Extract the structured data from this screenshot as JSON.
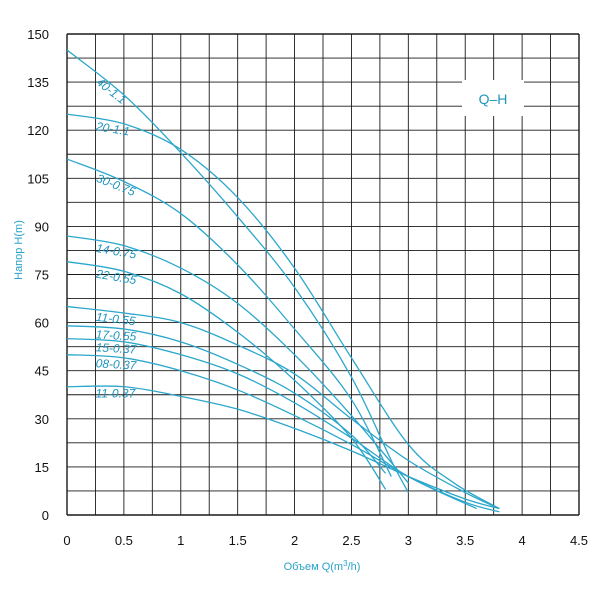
{
  "chart_data": {
    "type": "line",
    "title": "Q–H",
    "xlabel": "Объем Q(m³/h)",
    "ylabel": "Напор H(m)",
    "xlim": [
      0,
      4.5
    ],
    "ylim": [
      0,
      150
    ],
    "x_ticks": [
      "0",
      "0.5",
      "1",
      "1.5",
      "2",
      "2.5",
      "3",
      "3.5",
      "4",
      "4.5"
    ],
    "y_ticks": [
      "0",
      "15",
      "30",
      "45",
      "60",
      "75",
      "90",
      "105",
      "120",
      "135",
      "150"
    ],
    "grid": true,
    "series_color": "#2ba7cc",
    "grid_color": "#1a1a1a",
    "series": [
      {
        "name": "40-1.1",
        "points": [
          [
            0,
            145
          ],
          [
            0.5,
            131
          ],
          [
            1,
            113
          ],
          [
            1.5,
            93
          ],
          [
            2,
            71
          ],
          [
            2.5,
            43
          ],
          [
            2.85,
            17
          ],
          [
            3,
            7
          ]
        ]
      },
      {
        "name": "20-1.1",
        "points": [
          [
            0,
            125
          ],
          [
            0.5,
            122
          ],
          [
            1,
            114
          ],
          [
            1.5,
            99
          ],
          [
            2,
            77
          ],
          [
            2.5,
            49
          ],
          [
            3,
            22
          ],
          [
            3.4,
            10
          ],
          [
            3.8,
            2
          ]
        ]
      },
      {
        "name": "30-0.75",
        "points": [
          [
            0,
            111
          ],
          [
            0.5,
            104
          ],
          [
            1,
            94
          ],
          [
            1.5,
            78
          ],
          [
            2,
            58
          ],
          [
            2.5,
            36
          ],
          [
            2.85,
            12
          ]
        ]
      },
      {
        "name": "14-0.75",
        "points": [
          [
            0,
            87
          ],
          [
            0.5,
            84
          ],
          [
            1,
            77
          ],
          [
            1.5,
            66
          ],
          [
            2,
            50
          ],
          [
            2.5,
            31
          ],
          [
            3,
            10
          ]
        ]
      },
      {
        "name": "22-0.55",
        "points": [
          [
            0,
            79
          ],
          [
            0.5,
            76
          ],
          [
            1,
            69
          ],
          [
            1.5,
            57
          ],
          [
            2,
            42
          ],
          [
            2.5,
            24
          ],
          [
            2.8,
            8
          ]
        ]
      },
      {
        "name": "11-0.55",
        "points": [
          [
            0,
            65
          ],
          [
            0.5,
            63
          ],
          [
            1,
            60
          ],
          [
            1.5,
            53
          ],
          [
            2,
            44
          ],
          [
            2.5,
            30
          ],
          [
            3,
            17
          ],
          [
            3.5,
            7
          ],
          [
            3.8,
            2
          ]
        ]
      },
      {
        "name": "17-0.55",
        "points": [
          [
            0,
            59
          ],
          [
            0.5,
            58
          ],
          [
            1,
            54
          ],
          [
            1.5,
            47
          ],
          [
            2,
            38
          ],
          [
            2.5,
            25
          ],
          [
            2.8,
            13
          ]
        ]
      },
      {
        "name": "15-0.37",
        "points": [
          [
            0,
            55
          ],
          [
            0.5,
            54
          ],
          [
            1,
            50
          ],
          [
            1.5,
            44
          ],
          [
            2,
            35
          ],
          [
            2.5,
            24
          ],
          [
            3,
            12
          ],
          [
            3.6,
            2
          ]
        ]
      },
      {
        "name": "08-0.37",
        "points": [
          [
            0,
            50
          ],
          [
            0.5,
            49
          ],
          [
            1,
            45
          ],
          [
            1.5,
            39
          ],
          [
            2,
            31
          ],
          [
            2.5,
            22
          ],
          [
            3,
            12
          ],
          [
            3.5,
            4
          ],
          [
            3.8,
            1
          ]
        ]
      },
      {
        "name": "11-0.37",
        "points": [
          [
            0,
            40
          ],
          [
            0.5,
            40
          ],
          [
            1,
            37
          ],
          [
            1.5,
            33
          ],
          [
            2,
            27
          ],
          [
            2.5,
            20
          ],
          [
            3,
            12
          ],
          [
            3.5,
            5
          ],
          [
            3.8,
            2
          ]
        ]
      }
    ]
  }
}
